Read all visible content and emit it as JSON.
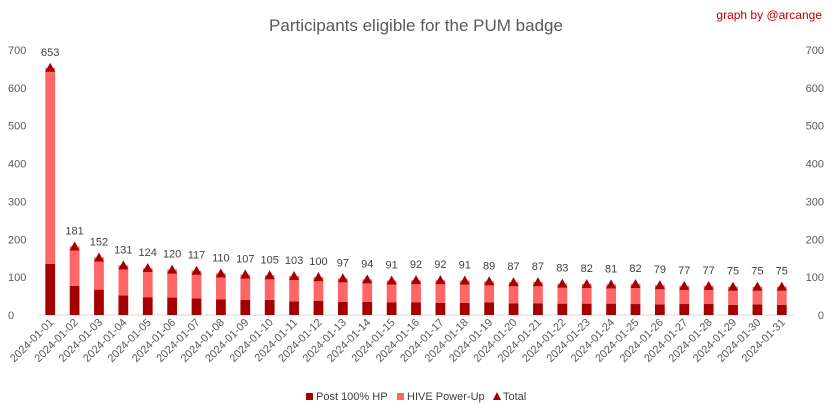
{
  "chart_data": {
    "type": "bar",
    "stacked": true,
    "title": "Participants eligible for the PUM badge",
    "credit": "graph by @arcange",
    "ylim": [
      0,
      700
    ],
    "yticks": [
      0,
      100,
      200,
      300,
      400,
      500,
      600,
      700
    ],
    "secondary_axis": true,
    "grid": false,
    "legend_position": "bottom",
    "categories": [
      "2024-01-01",
      "2024-01-02",
      "2024-01-03",
      "2024-01-04",
      "2024-01-05",
      "2024-01-06",
      "2024-01-07",
      "2024-01-08",
      "2024-01-09",
      "2024-01-10",
      "2024-01-11",
      "2024-01-12",
      "2024-01-13",
      "2024-01-14",
      "2024-01-15",
      "2024-01-16",
      "2024-01-17",
      "2024-01-18",
      "2024-01-19",
      "2024-01-20",
      "2024-01-21",
      "2024-01-22",
      "2024-01-23",
      "2024-01-24",
      "2024-01-25",
      "2024-01-26",
      "2024-01-27",
      "2024-01-28",
      "2024-01-29",
      "2024-01-30",
      "2024-01-31"
    ],
    "series": [
      {
        "name": "Post 100% HP",
        "color": "#a50000",
        "values": [
          135,
          77,
          67,
          52,
          47,
          46,
          44,
          41,
          40,
          40,
          36,
          37,
          35,
          35,
          33,
          33,
          32,
          32,
          33,
          31,
          31,
          30,
          30,
          30,
          29,
          28,
          29,
          29,
          27,
          28,
          27
        ]
      },
      {
        "name": "HIVE Power-Up",
        "color": "#ff6666",
        "values": [
          518,
          104,
          85,
          79,
          77,
          74,
          73,
          69,
          67,
          65,
          67,
          63,
          62,
          59,
          58,
          59,
          60,
          59,
          56,
          56,
          56,
          53,
          52,
          51,
          53,
          51,
          48,
          48,
          48,
          47,
          48
        ]
      },
      {
        "name": "Total",
        "color": "#a50000",
        "marker": "triangle",
        "values": [
          653,
          181,
          152,
          131,
          124,
          120,
          117,
          110,
          107,
          105,
          103,
          100,
          97,
          94,
          91,
          92,
          92,
          91,
          89,
          87,
          87,
          83,
          82,
          81,
          82,
          79,
          77,
          77,
          75,
          75,
          75
        ]
      }
    ]
  }
}
